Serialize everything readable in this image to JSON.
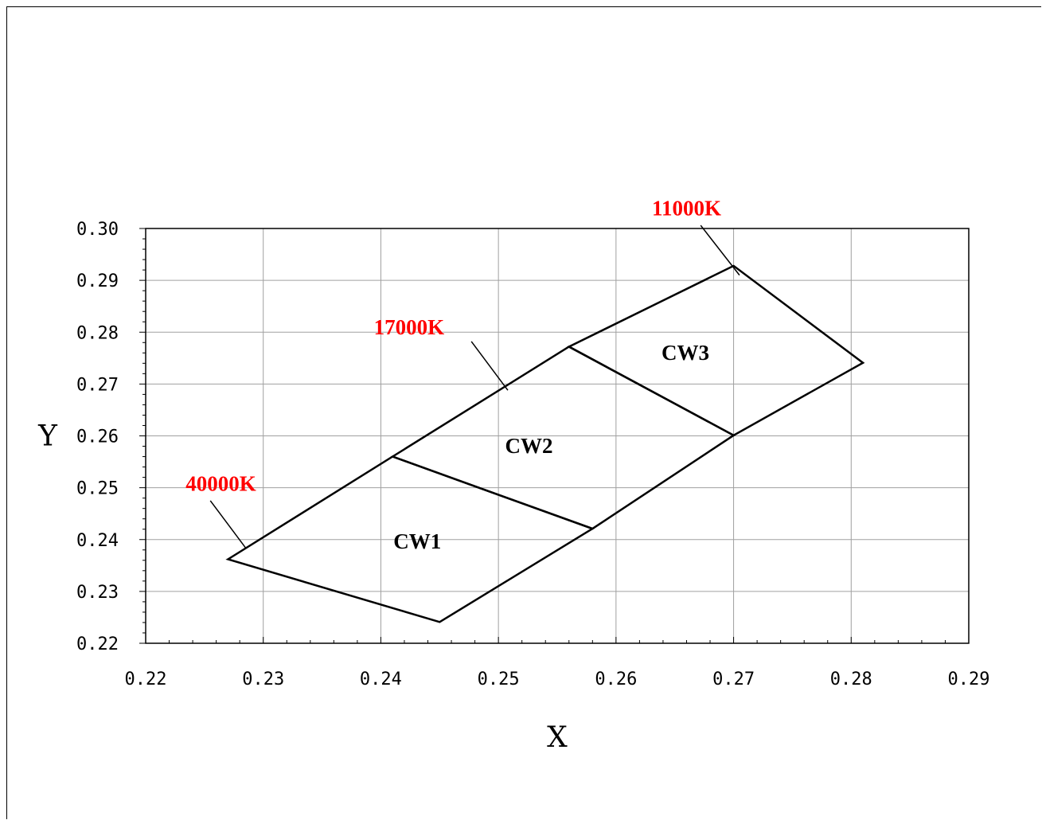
{
  "chart_data": {
    "type": "scatter",
    "title": "",
    "xlabel": "X",
    "ylabel": "Y",
    "xlim": [
      0.22,
      0.29
    ],
    "ylim": [
      0.22,
      0.3
    ],
    "x_ticks": [
      "0.22",
      "0.23",
      "0.24",
      "0.25",
      "0.26",
      "0.27",
      "0.28",
      "0.29"
    ],
    "y_ticks": [
      "0.22",
      "0.23",
      "0.24",
      "0.25",
      "0.26",
      "0.27",
      "0.28",
      "0.29",
      "0.30"
    ],
    "grid": true,
    "line_color": "#000000",
    "annotation_color": "#ff0000",
    "regions": [
      {
        "name": "CW1",
        "label_pos": [
          0.2431,
          0.2383
        ],
        "vertices": [
          [
            0.227,
            0.2362
          ],
          [
            0.241,
            0.256
          ],
          [
            0.258,
            0.2421
          ],
          [
            0.245,
            0.2241
          ]
        ]
      },
      {
        "name": "CW2",
        "label_pos": [
          0.2526,
          0.2567
        ],
        "vertices": [
          [
            0.241,
            0.256
          ],
          [
            0.256,
            0.2772
          ],
          [
            0.27,
            0.2601
          ],
          [
            0.258,
            0.2421
          ]
        ]
      },
      {
        "name": "CW3",
        "label_pos": [
          0.2659,
          0.2747
        ],
        "vertices": [
          [
            0.256,
            0.2772
          ],
          [
            0.27,
            0.2928
          ],
          [
            0.281,
            0.2741
          ],
          [
            0.27,
            0.2601
          ]
        ]
      }
    ],
    "annotations": [
      {
        "text": "40000K",
        "label_pos": [
          0.2264,
          0.2494
        ],
        "leader": [
          [
            0.2255,
            0.2475
          ],
          [
            0.2285,
            0.2384
          ]
        ]
      },
      {
        "text": "17000K",
        "label_pos": [
          0.2424,
          0.2796
        ],
        "leader": [
          [
            0.2477,
            0.2782
          ],
          [
            0.2508,
            0.2688
          ]
        ]
      },
      {
        "text": "11000K",
        "label_pos": [
          0.266,
          0.3025
        ],
        "leader": [
          [
            0.2672,
            0.3006
          ],
          [
            0.2705,
            0.291
          ]
        ]
      }
    ]
  }
}
